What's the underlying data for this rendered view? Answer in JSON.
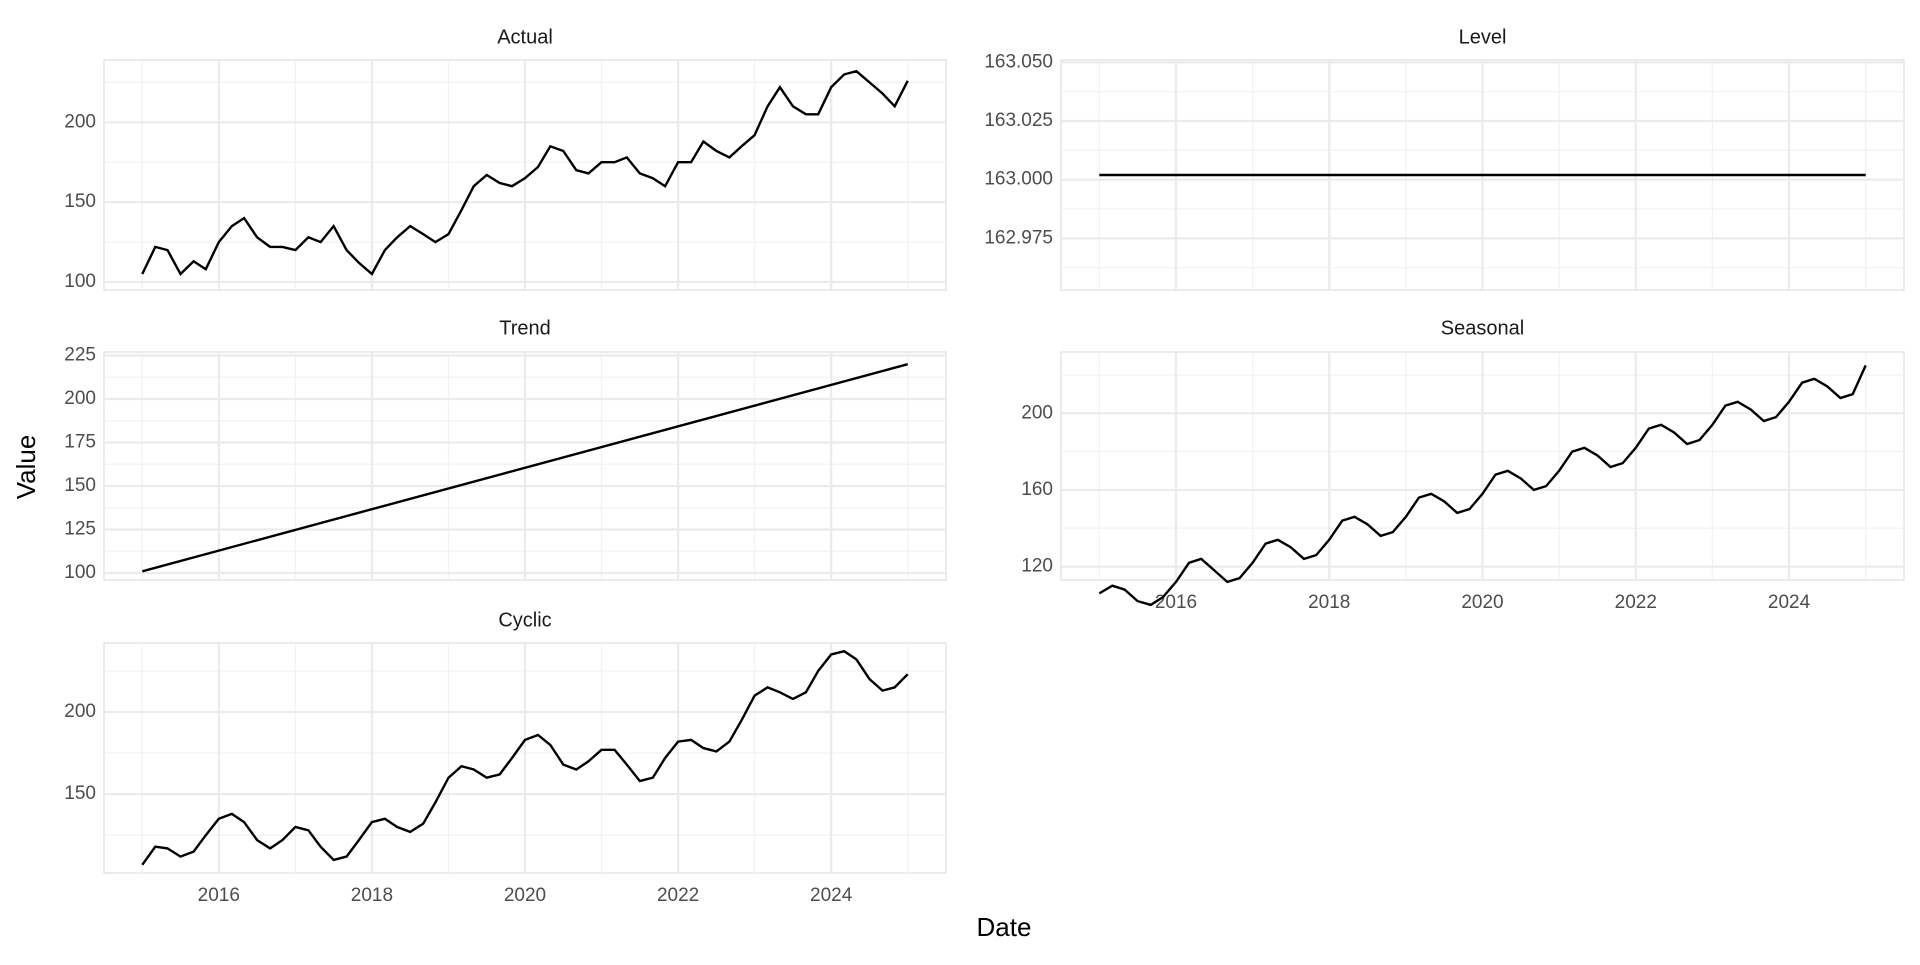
{
  "x_label": "Date",
  "y_label": "Value",
  "chart_data": [
    {
      "type": "line",
      "title": "Actual",
      "color": "#000000",
      "grid": true,
      "xlim": [
        2014.5,
        2025.5
      ],
      "xticks": [
        2016,
        2018,
        2020,
        2022,
        2024
      ],
      "ylim": [
        95,
        239
      ],
      "yticks": [
        100,
        150,
        200
      ],
      "x": [
        2015,
        2015.17,
        2015.33,
        2015.5,
        2015.67,
        2015.83,
        2016,
        2016.17,
        2016.33,
        2016.5,
        2016.67,
        2016.83,
        2017,
        2017.17,
        2017.33,
        2017.5,
        2017.67,
        2017.83,
        2018,
        2018.17,
        2018.33,
        2018.5,
        2018.67,
        2018.83,
        2019,
        2019.17,
        2019.33,
        2019.5,
        2019.67,
        2019.83,
        2020,
        2020.17,
        2020.33,
        2020.5,
        2020.67,
        2020.83,
        2021,
        2021.17,
        2021.33,
        2021.5,
        2021.67,
        2021.83,
        2022,
        2022.17,
        2022.33,
        2022.5,
        2022.67,
        2022.83,
        2023,
        2023.17,
        2023.33,
        2023.5,
        2023.67,
        2023.83,
        2024,
        2024.17,
        2024.33,
        2024.5,
        2024.67,
        2024.83,
        2025
      ],
      "values": [
        105,
        122,
        120,
        105,
        113,
        108,
        125,
        135,
        140,
        128,
        122,
        122,
        120,
        128,
        125,
        135,
        120,
        112,
        105,
        120,
        128,
        135,
        130,
        125,
        130,
        145,
        160,
        167,
        162,
        160,
        165,
        172,
        185,
        182,
        170,
        168,
        175,
        175,
        178,
        168,
        165,
        160,
        175,
        175,
        188,
        182,
        178,
        185,
        192,
        210,
        222,
        210,
        205,
        205,
        222,
        230,
        232,
        225,
        218,
        210,
        226
      ]
    },
    {
      "type": "line",
      "title": "Level",
      "color": "#000000",
      "grid": true,
      "xlim": [
        2014.5,
        2025.5
      ],
      "xticks": [
        2016,
        2018,
        2020,
        2022,
        2024
      ],
      "ylim": [
        162.953,
        163.051
      ],
      "yticks": [
        {
          "value": 162.975,
          "label": "162.975"
        },
        {
          "value": 163,
          "label": "163.000"
        },
        {
          "value": 163.025,
          "label": "163.025"
        },
        {
          "value": 163.05,
          "label": "163.050"
        }
      ],
      "x": [
        2015,
        2025
      ],
      "values": [
        163.002,
        163.002
      ]
    },
    {
      "type": "line",
      "title": "Trend",
      "color": "#000000",
      "grid": true,
      "xlim": [
        2014.5,
        2025.5
      ],
      "xticks": [
        2016,
        2018,
        2020,
        2022,
        2024
      ],
      "ylim": [
        96,
        227
      ],
      "yticks": [
        100,
        125,
        150,
        175,
        200,
        225
      ],
      "x": [
        2015,
        2025
      ],
      "values": [
        101,
        220
      ]
    },
    {
      "type": "line",
      "title": "Seasonal",
      "color": "#000000",
      "grid": true,
      "xlim": [
        2014.5,
        2025.5
      ],
      "xticks": [
        2016,
        2018,
        2020,
        2022,
        2024
      ],
      "ylim": [
        113,
        232
      ],
      "yticks": [
        120,
        160,
        200
      ],
      "x": [
        2015,
        2015.17,
        2015.33,
        2015.5,
        2015.67,
        2015.83,
        2016,
        2016.17,
        2016.33,
        2016.5,
        2016.67,
        2016.83,
        2017,
        2017.17,
        2017.33,
        2017.5,
        2017.67,
        2017.83,
        2018,
        2018.17,
        2018.33,
        2018.5,
        2018.67,
        2018.83,
        2019,
        2019.17,
        2019.33,
        2019.5,
        2019.67,
        2019.83,
        2020,
        2020.17,
        2020.33,
        2020.5,
        2020.67,
        2020.83,
        2021,
        2021.17,
        2021.33,
        2021.5,
        2021.67,
        2021.83,
        2022,
        2022.17,
        2022.33,
        2022.5,
        2022.67,
        2022.83,
        2023,
        2023.17,
        2023.33,
        2023.5,
        2023.67,
        2023.83,
        2024,
        2024.17,
        2024.33,
        2024.5,
        2024.67,
        2024.83,
        2025
      ],
      "values": [
        106,
        110,
        108,
        102,
        100,
        104,
        112,
        122,
        124,
        118,
        112,
        114,
        122,
        132,
        134,
        130,
        124,
        126,
        134,
        144,
        146,
        142,
        136,
        138,
        146,
        156,
        158,
        154,
        148,
        150,
        158,
        168,
        170,
        166,
        160,
        162,
        170,
        180,
        182,
        178,
        172,
        174,
        182,
        192,
        194,
        190,
        184,
        186,
        194,
        204,
        206,
        202,
        196,
        198,
        206,
        216,
        218,
        214,
        208,
        210,
        225
      ]
    },
    {
      "type": "line",
      "title": "Cyclic",
      "color": "#000000",
      "grid": true,
      "xlim": [
        2014.5,
        2025.5
      ],
      "xticks": [
        2016,
        2018,
        2020,
        2022,
        2024
      ],
      "ylim": [
        102,
        242
      ],
      "yticks": [
        150,
        200
      ],
      "x": [
        2015,
        2015.17,
        2015.33,
        2015.5,
        2015.67,
        2015.83,
        2016,
        2016.17,
        2016.33,
        2016.5,
        2016.67,
        2016.83,
        2017,
        2017.17,
        2017.33,
        2017.5,
        2017.67,
        2017.83,
        2018,
        2018.17,
        2018.33,
        2018.5,
        2018.67,
        2018.83,
        2019,
        2019.17,
        2019.33,
        2019.5,
        2019.67,
        2019.83,
        2020,
        2020.17,
        2020.33,
        2020.5,
        2020.67,
        2020.83,
        2021,
        2021.17,
        2021.33,
        2021.5,
        2021.67,
        2021.83,
        2022,
        2022.17,
        2022.33,
        2022.5,
        2022.67,
        2022.83,
        2023,
        2023.17,
        2023.33,
        2023.5,
        2023.67,
        2023.83,
        2024,
        2024.17,
        2024.33,
        2024.5,
        2024.67,
        2024.83,
        2025
      ],
      "values": [
        107,
        118,
        117,
        112,
        115,
        125,
        135,
        138,
        133,
        122,
        117,
        122,
        130,
        128,
        118,
        110,
        112,
        122,
        133,
        135,
        130,
        127,
        132,
        145,
        160,
        167,
        165,
        160,
        162,
        172,
        183,
        186,
        180,
        168,
        165,
        170,
        177,
        177,
        168,
        158,
        160,
        172,
        182,
        183,
        178,
        176,
        182,
        195,
        210,
        215,
        212,
        208,
        212,
        225,
        235,
        237,
        232,
        220,
        213,
        215,
        223
      ]
    }
  ]
}
